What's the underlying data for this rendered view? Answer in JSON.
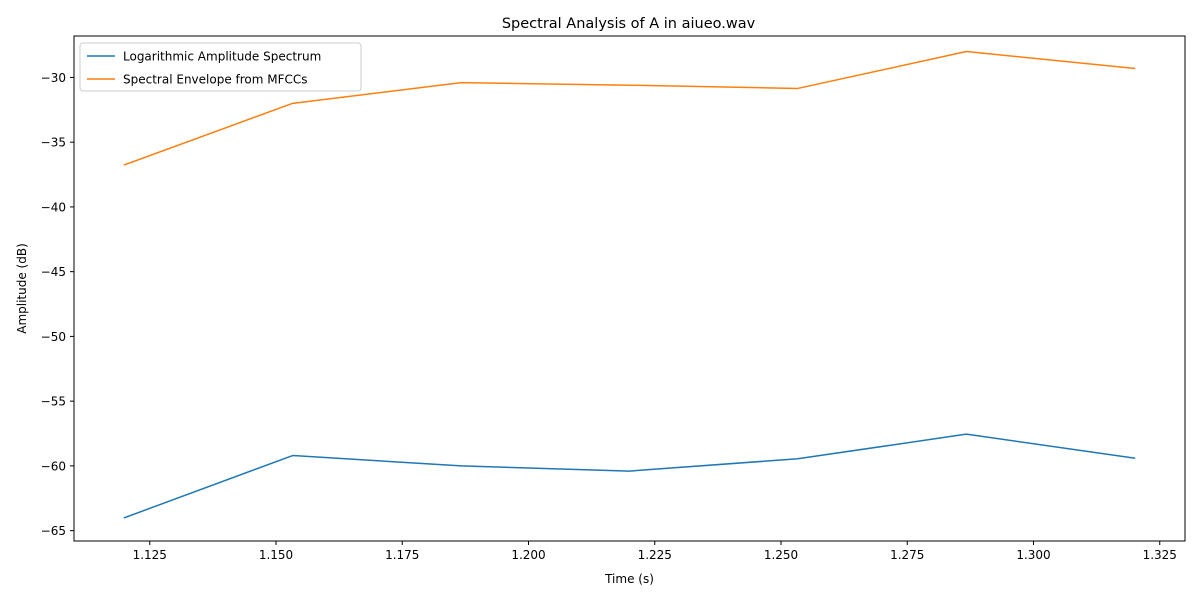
{
  "chart_data": {
    "type": "line",
    "title": "Spectral Analysis of A in aiueo.wav",
    "xlabel": "Time (s)",
    "ylabel": "Amplitude (dB)",
    "xlim": [
      1.11,
      1.33
    ],
    "ylim": [
      -65.8,
      -26.8
    ],
    "xticks": [
      1.125,
      1.15,
      1.175,
      1.2,
      1.225,
      1.25,
      1.275,
      1.3,
      1.325
    ],
    "xtick_labels": [
      "1.125",
      "1.150",
      "1.175",
      "1.200",
      "1.225",
      "1.250",
      "1.275",
      "1.300",
      "1.325"
    ],
    "yticks": [
      -65,
      -60,
      -55,
      -50,
      -45,
      -40,
      -35,
      -30
    ],
    "ytick_labels": [
      "−65",
      "−60",
      "−55",
      "−50",
      "−45",
      "−40",
      "−35",
      "−30"
    ],
    "x": [
      1.12,
      1.1533,
      1.1867,
      1.22,
      1.2533,
      1.2867,
      1.32
    ],
    "grid": false,
    "legend_position": "top-left",
    "series": [
      {
        "name": "Logarithmic Amplitude Spectrum",
        "color": "#1f77b4",
        "values": [
          -64.0,
          -59.2,
          -60.0,
          -60.4,
          -59.45,
          -57.55,
          -59.4
        ]
      },
      {
        "name": "Spectral Envelope from MFCCs",
        "color": "#ff7f0e",
        "values": [
          -36.75,
          -32.0,
          -30.4,
          -30.6,
          -30.85,
          -28.0,
          -29.3
        ]
      }
    ]
  }
}
